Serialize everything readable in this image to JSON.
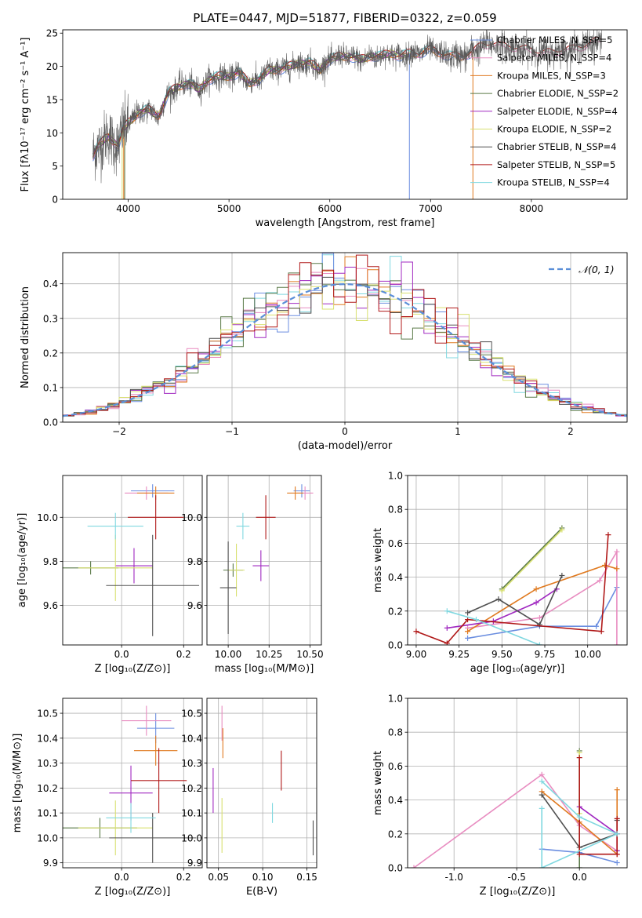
{
  "colors": [
    "#6b8ee0",
    "#e88cc0",
    "#e07a20",
    "#5a7a48",
    "#a028c0",
    "#d8e070",
    "#505050",
    "#b01818",
    "#80d8e0"
  ],
  "chart_data": [
    {
      "type": "line",
      "title": "PLATE=0447, MJD=51877, FIBERID=0322, z=0.059",
      "xlabel": "wavelength [Angstrom, rest frame]",
      "ylabel": "Flux [fλ10⁻¹⁷ erg cm⁻² s⁻¹ A⁻¹]",
      "xlim": [
        3350,
        8950
      ],
      "ylim": [
        0,
        25.5
      ],
      "xticks": [
        4000,
        5000,
        6000,
        7000,
        8000
      ],
      "yticks": [
        0,
        5,
        10,
        15,
        20,
        25
      ],
      "legend_position": "top-right",
      "series": [
        {
          "name": "Chabrier MILES, N_SSP=5",
          "color_index": 0
        },
        {
          "name": "Salpeter MILES, N_SSP=4",
          "color_index": 1
        },
        {
          "name": "Kroupa MILES, N_SSP=3",
          "color_index": 2
        },
        {
          "name": "Chabrier ELODIE, N_SSP=2",
          "color_index": 3
        },
        {
          "name": "Salpeter ELODIE, N_SSP=4",
          "color_index": 4
        },
        {
          "name": "Kroupa ELODIE, N_SSP=2",
          "color_index": 5
        },
        {
          "name": "Chabrier STELIB, N_SSP=4",
          "color_index": 6
        },
        {
          "name": "Salpeter STELIB, N_SSP=5",
          "color_index": 7
        },
        {
          "name": "Kroupa STELIB, N_SSP=4",
          "color_index": 8
        }
      ],
      "continuum": {
        "x": [
          3650,
          3700,
          3800,
          3900,
          3950,
          4000,
          4100,
          4200,
          4300,
          4400,
          4500,
          4600,
          4700,
          4800,
          4900,
          5000,
          5100,
          5200,
          5300,
          5400,
          5500,
          5600,
          5700,
          5800,
          5900,
          6000,
          6100,
          6200,
          6300,
          6400,
          6500,
          6600,
          6700,
          6800,
          6900,
          7000,
          7100,
          7200,
          7300,
          7400,
          7500,
          7600,
          7700,
          7800,
          7900,
          8000,
          8100,
          8200,
          8300,
          8400,
          8500,
          8600,
          8700
        ],
        "y": [
          6.5,
          8.0,
          9.5,
          8.0,
          10.5,
          11.5,
          13.0,
          13.5,
          12.5,
          16.0,
          17.0,
          17.5,
          16.5,
          18.0,
          18.5,
          18.5,
          19.0,
          17.5,
          18.0,
          19.5,
          19.5,
          20.0,
          20.5,
          20.5,
          19.5,
          21.0,
          21.5,
          21.5,
          21.0,
          21.5,
          21.5,
          22.0,
          21.5,
          22.0,
          22.0,
          22.5,
          22.0,
          21.5,
          21.5,
          22.0,
          23.0,
          23.5,
          23.0,
          23.0,
          22.5,
          22.5,
          22.0,
          22.0,
          22.5,
          22.5,
          23.0,
          23.5,
          24.0
        ]
      },
      "model_ranges": [
        {
          "series_index": 0,
          "x_max": 7400
        },
        {
          "series_index": 1,
          "x_max": 8700
        },
        {
          "series_index": 2,
          "x_max": 7400
        },
        {
          "series_index": 3,
          "x_max": 6800
        },
        {
          "series_index": 4,
          "x_max": 6800
        },
        {
          "series_index": 5,
          "x_max": 6800
        },
        {
          "series_index": 6,
          "x_max": 8700
        },
        {
          "series_index": 7,
          "x_max": 8700
        },
        {
          "series_index": 8,
          "x_max": 7400
        }
      ]
    },
    {
      "type": "step",
      "xlabel": "(data-model)/error",
      "ylabel": "Normed distribution",
      "xlim": [
        -2.5,
        2.5
      ],
      "ylim": [
        0,
        0.49
      ],
      "xticks": [
        -2,
        -1,
        0,
        1,
        2
      ],
      "yticks": [
        0.0,
        0.1,
        0.2,
        0.3,
        0.4
      ],
      "grid": true,
      "legend_position": "top-right",
      "reference": {
        "name": "𝒩(0, 1)",
        "mean": 0,
        "sigma": 1,
        "color": "#5b8fd8"
      },
      "bin_width": 0.1
    },
    {
      "type": "errorbar",
      "xlabel": "Z [log₁₀(Z/Z⊙)]",
      "ylabel": "age  [log₁₀(age/yr)]",
      "xlim": [
        -0.19,
        0.26
      ],
      "ylim": [
        9.42,
        10.19
      ],
      "xticks": [
        0.0,
        0.2
      ],
      "yticks": [
        9.6,
        9.8,
        10.0
      ],
      "grid": true,
      "points": [
        {
          "x": 0.1,
          "xerr": 0.07,
          "y": 10.12,
          "yerr": 0.03
        },
        {
          "x": 0.08,
          "xerr": 0.07,
          "y": 10.11,
          "yerr": 0.03
        },
        {
          "x": 0.11,
          "xerr": 0.06,
          "y": 10.11,
          "yerr": 0.03
        },
        {
          "x": -0.1,
          "xerr": 0.09,
          "y": 9.77,
          "yerr": 0.03
        },
        {
          "x": 0.04,
          "xerr": 0.06,
          "y": 9.78,
          "yerr": 0.08
        },
        {
          "x": -0.02,
          "xerr": 0.12,
          "y": 9.77,
          "yerr": 0.15
        },
        {
          "x": 0.1,
          "xerr": 0.15,
          "y": 9.69,
          "yerr": 0.23
        },
        {
          "x": 0.11,
          "xerr": 0.09,
          "y": 10.0,
          "yerr": 0.1
        },
        {
          "x": -0.02,
          "xerr": 0.09,
          "y": 9.96,
          "yerr": 0.06
        }
      ]
    },
    {
      "type": "errorbar",
      "xlabel": "mass [log₁₀(M/M⊙)]",
      "xlim": [
        9.87,
        10.57
      ],
      "ylim": [
        9.42,
        10.19
      ],
      "xticks": [
        10.0,
        10.25,
        10.5
      ],
      "yticks": [
        9.6,
        9.8,
        10.0
      ],
      "grid": true,
      "points": [
        {
          "x": 10.45,
          "xerr": 0.05,
          "y": 10.12,
          "yerr": 0.03
        },
        {
          "x": 10.47,
          "xerr": 0.05,
          "y": 10.11,
          "yerr": 0.03
        },
        {
          "x": 10.41,
          "xerr": 0.05,
          "y": 10.11,
          "yerr": 0.03
        },
        {
          "x": 10.03,
          "xerr": 0.06,
          "y": 9.76,
          "yerr": 0.03
        },
        {
          "x": 10.2,
          "xerr": 0.05,
          "y": 9.78,
          "yerr": 0.07
        },
        {
          "x": 10.05,
          "xerr": 0.05,
          "y": 9.76,
          "yerr": 0.12
        },
        {
          "x": 10.0,
          "xerr": 0.05,
          "y": 9.68,
          "yerr": 0.21
        },
        {
          "x": 10.23,
          "xerr": 0.06,
          "y": 10.0,
          "yerr": 0.1
        },
        {
          "x": 10.09,
          "xerr": 0.04,
          "y": 9.96,
          "yerr": 0.06
        }
      ]
    },
    {
      "type": "line",
      "xlabel": "age  [log₁₀(age/yr)]",
      "ylabel": "mass weight",
      "xlim": [
        8.95,
        10.23
      ],
      "ylim": [
        0,
        1.0
      ],
      "xticks": [
        9.0,
        9.25,
        9.5,
        9.75,
        10.0
      ],
      "yticks": [
        0.0,
        0.2,
        0.4,
        0.6,
        0.8,
        1.0
      ],
      "grid": true,
      "series": [
        {
          "color_index": 0,
          "x": [
            9.3,
            9.72,
            10.05,
            10.17
          ],
          "y": [
            0.04,
            0.11,
            0.11,
            0.34
          ]
        },
        {
          "color_index": 1,
          "x": [
            9.3,
            9.72,
            10.07,
            10.17,
            10.17
          ],
          "y": [
            0.1,
            0.16,
            0.38,
            0.55,
            0.0
          ]
        },
        {
          "color_index": 2,
          "x": [
            9.3,
            9.7,
            10.1,
            10.17
          ],
          "y": [
            0.08,
            0.33,
            0.47,
            0.45
          ]
        },
        {
          "color_index": 3,
          "x": [
            9.5,
            9.85
          ],
          "y": [
            0.33,
            0.69
          ]
        },
        {
          "color_index": 4,
          "x": [
            9.18,
            9.45,
            9.7,
            9.82
          ],
          "y": [
            0.1,
            0.14,
            0.25,
            0.33
          ]
        },
        {
          "color_index": 5,
          "x": [
            9.5,
            9.85
          ],
          "y": [
            0.32,
            0.68
          ]
        },
        {
          "color_index": 6,
          "x": [
            9.3,
            9.48,
            9.72,
            9.85
          ],
          "y": [
            0.19,
            0.27,
            0.12,
            0.41
          ]
        },
        {
          "color_index": 7,
          "x": [
            9.0,
            9.18,
            9.3,
            10.08,
            10.12
          ],
          "y": [
            0.08,
            0.01,
            0.15,
            0.08,
            0.65
          ]
        },
        {
          "color_index": 8,
          "x": [
            9.18,
            9.35,
            9.72,
            9.72
          ],
          "y": [
            0.2,
            0.15,
            0.0,
            0.0
          ]
        }
      ]
    },
    {
      "type": "errorbar",
      "xlabel": "Z [log₁₀(Z/Z⊙)]",
      "ylabel": "mass [log₁₀(M/M⊙)]",
      "xlim": [
        -0.19,
        0.26
      ],
      "ylim": [
        9.88,
        10.56
      ],
      "xticks": [
        0.0,
        0.2
      ],
      "yticks": [
        9.9,
        10.0,
        10.1,
        10.2,
        10.3,
        10.4,
        10.5
      ],
      "grid": true,
      "points": [
        {
          "x": 0.11,
          "xerr": 0.06,
          "y": 10.44,
          "yerr": 0.06
        },
        {
          "x": 0.08,
          "xerr": 0.08,
          "y": 10.47,
          "yerr": 0.06
        },
        {
          "x": 0.11,
          "xerr": 0.07,
          "y": 10.35,
          "yerr": 0.06
        },
        {
          "x": -0.07,
          "xerr": 0.12,
          "y": 10.04,
          "yerr": 0.04
        },
        {
          "x": 0.03,
          "xerr": 0.07,
          "y": 10.18,
          "yerr": 0.11
        },
        {
          "x": -0.02,
          "xerr": 0.12,
          "y": 10.04,
          "yerr": 0.11
        },
        {
          "x": 0.1,
          "xerr": 0.14,
          "y": 10.0,
          "yerr": 0.1
        },
        {
          "x": 0.12,
          "xerr": 0.09,
          "y": 10.23,
          "yerr": 0.13
        },
        {
          "x": 0.03,
          "xerr": 0.08,
          "y": 10.08,
          "yerr": 0.06
        }
      ]
    },
    {
      "type": "errorbar",
      "xlabel": "E(B-V)",
      "xlim": [
        0.037,
        0.161
      ],
      "ylim": [
        9.88,
        10.56
      ],
      "xticks": [
        0.05,
        0.1,
        0.15
      ],
      "yticks": [
        9.9,
        10.0,
        10.1,
        10.2,
        10.3,
        10.4,
        10.5
      ],
      "grid": true,
      "points": [
        {
          "color_index": 1,
          "x": 0.054,
          "y": 10.46,
          "yerr": 0.07
        },
        {
          "color_index": 2,
          "x": 0.055,
          "y": 10.38,
          "yerr": 0.06
        },
        {
          "color_index": 4,
          "x": 0.044,
          "y": 10.19,
          "yerr": 0.09
        },
        {
          "color_index": 5,
          "x": 0.054,
          "y": 10.05,
          "yerr": 0.11
        },
        {
          "color_index": 8,
          "x": 0.111,
          "y": 10.1,
          "yerr": 0.04
        },
        {
          "color_index": 7,
          "x": 0.121,
          "y": 10.27,
          "yerr": 0.08
        },
        {
          "color_index": 6,
          "x": 0.157,
          "y": 10.0,
          "yerr": 0.07
        }
      ]
    },
    {
      "type": "line",
      "xlabel": "Z [log₁₀(Z/Z⊙)]",
      "ylabel": "mass weight",
      "xlim": [
        -1.37,
        0.38
      ],
      "ylim": [
        0,
        1.0
      ],
      "xticks": [
        -1.0,
        -0.5,
        0.0
      ],
      "yticks": [
        0.0,
        0.2,
        0.4,
        0.6,
        0.8,
        1.0
      ],
      "grid": true,
      "series": [
        {
          "color_index": 0,
          "x": [
            -0.3,
            0.0,
            0.3
          ],
          "y": [
            0.11,
            0.09,
            0.03
          ]
        },
        {
          "color_index": 1,
          "x": [
            -1.32,
            -0.3,
            0.0,
            0.3
          ],
          "y": [
            0.0,
            0.55,
            0.25,
            0.1
          ]
        },
        {
          "color_index": 2,
          "x": [
            -0.3,
            0.0,
            0.3,
            0.3
          ],
          "y": [
            0.45,
            0.27,
            0.08,
            0.46
          ]
        },
        {
          "color_index": 3,
          "x": [
            0.0,
            0.0
          ],
          "y": [
            0.69,
            0.0
          ]
        },
        {
          "color_index": 4,
          "x": [
            0.0,
            0.3,
            0.3
          ],
          "y": [
            0.36,
            0.2,
            0.1
          ]
        },
        {
          "color_index": 5,
          "x": [
            0.0,
            0.0
          ],
          "y": [
            0.68,
            0.32
          ]
        },
        {
          "color_index": 6,
          "x": [
            -0.3,
            0.0,
            0.3,
            0.3
          ],
          "y": [
            0.43,
            0.12,
            0.2,
            0.28
          ]
        },
        {
          "color_index": 7,
          "x": [
            0.0,
            0.0,
            0.3,
            0.3
          ],
          "y": [
            0.65,
            0.08,
            0.08,
            0.29
          ]
        },
        {
          "color_index": 8,
          "x": [
            -0.3,
            0.0,
            0.3,
            -0.3,
            -0.3
          ],
          "y": [
            0.51,
            0.3,
            0.2,
            0.0,
            0.35
          ]
        }
      ]
    }
  ]
}
